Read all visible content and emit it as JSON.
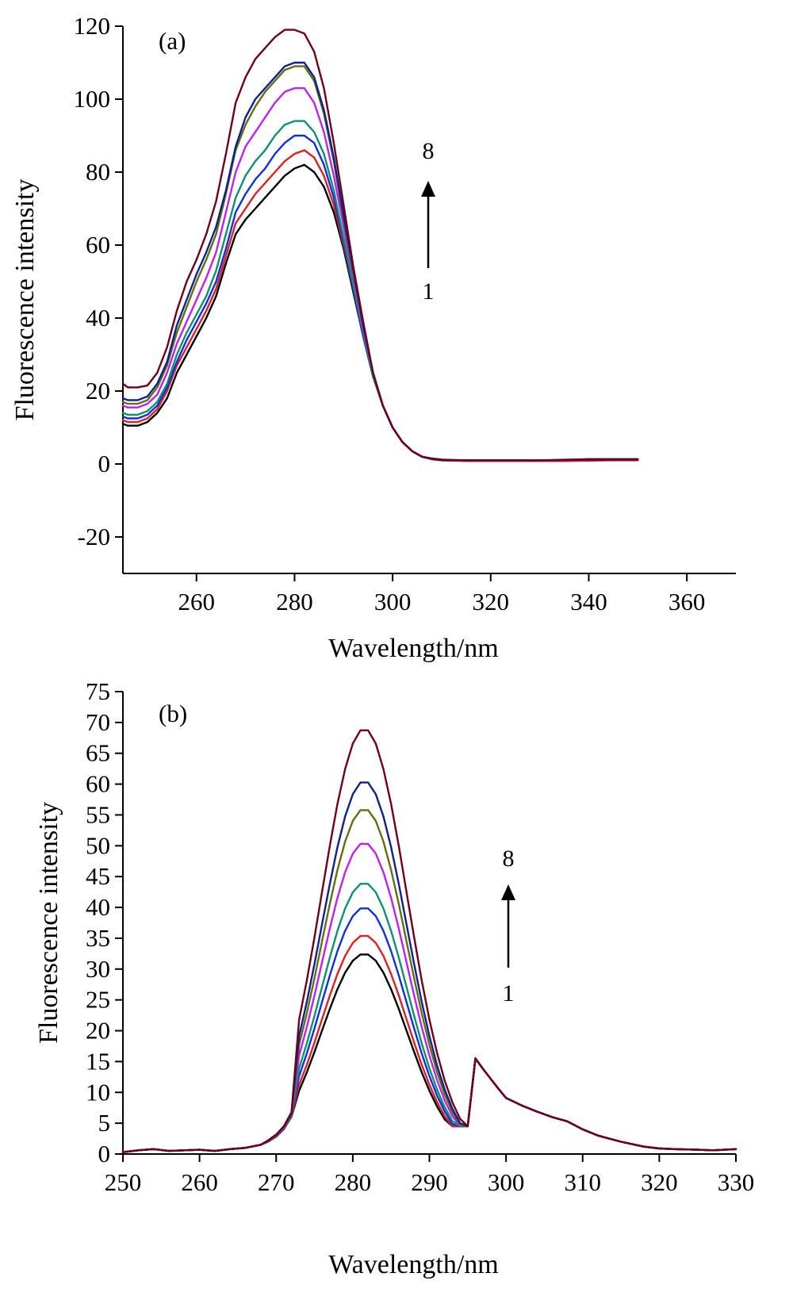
{
  "chart_data": [
    {
      "type": "line",
      "panel_label": "(a)",
      "xlabel": "Wavelength/nm",
      "ylabel": "Fluorescence intensity",
      "xlim": [
        245,
        370
      ],
      "ylim": [
        -30,
        120
      ],
      "xticks": [
        260,
        280,
        300,
        320,
        340,
        360
      ],
      "yticks": [
        -20,
        0,
        20,
        40,
        60,
        80,
        100,
        120
      ],
      "arrow": {
        "top_label": "8",
        "bottom_label": "1"
      },
      "x": [
        245,
        246,
        248,
        250,
        252,
        254,
        256,
        258,
        260,
        262,
        264,
        266,
        268,
        270,
        272,
        274,
        276,
        278,
        280,
        282,
        284,
        286,
        288,
        290,
        292,
        294,
        296,
        298,
        300,
        302,
        304,
        306,
        308,
        310,
        315,
        320,
        325,
        330,
        335,
        340,
        345,
        350
      ],
      "series": [
        {
          "color": "#000000",
          "values": [
            11,
            10.5,
            10.5,
            11.5,
            14,
            18,
            25,
            30,
            35,
            40,
            46,
            55,
            63,
            67,
            70,
            73,
            76,
            79,
            81,
            82,
            80,
            76,
            69,
            59,
            47,
            35,
            24,
            16,
            10,
            6,
            3.5,
            2,
            1.5,
            1.2,
            1,
            1,
            1,
            1,
            1,
            1.2,
            1.2,
            1.2
          ]
        },
        {
          "color": "#e02020",
          "values": [
            12,
            11.5,
            11.5,
            12.5,
            15,
            20,
            27,
            32,
            37,
            42,
            48,
            57,
            66,
            70,
            74,
            77,
            80,
            83,
            85,
            86,
            84,
            79,
            71,
            60,
            48,
            35,
            24,
            16,
            10,
            6,
            3.5,
            2,
            1.3,
            1,
            0.8,
            0.8,
            0.8,
            0.8,
            0.8,
            0.9,
            1,
            1
          ]
        },
        {
          "color": "#1030e0",
          "values": [
            13,
            12.5,
            12.5,
            13.5,
            16,
            21,
            28,
            34,
            39,
            44,
            50,
            59,
            69,
            74,
            78,
            81,
            85,
            88,
            90,
            90,
            88,
            82,
            73,
            61,
            48,
            35,
            24,
            16,
            10,
            6,
            3.5,
            2,
            1.4,
            1.1,
            1,
            1,
            1,
            1,
            1.1,
            1.3,
            1.3,
            1.3
          ]
        },
        {
          "color": "#109070",
          "values": [
            14,
            13.5,
            13.5,
            14.5,
            17,
            22,
            30,
            36,
            41,
            46,
            53,
            63,
            73,
            79,
            83,
            86,
            90,
            93,
            94,
            94,
            91,
            85,
            75,
            62,
            49,
            36,
            24,
            16,
            10,
            6,
            3.5,
            2,
            1.3,
            1.1,
            1,
            1,
            1,
            1,
            1.2,
            1.3,
            1.3,
            1.3
          ]
        },
        {
          "color": "#c020f0",
          "values": [
            16,
            15.5,
            15.5,
            16.5,
            19,
            25,
            33,
            39,
            45,
            51,
            58,
            69,
            80,
            87,
            91,
            95,
            99,
            102,
            103,
            103,
            99,
            91,
            79,
            65,
            51,
            37,
            25,
            16,
            10,
            6,
            3.5,
            2,
            1.3,
            1,
            0.9,
            0.9,
            0.9,
            0.9,
            1,
            1.1,
            1.1,
            1.1
          ]
        },
        {
          "color": "#607010",
          "values": [
            17,
            16.5,
            16.5,
            17.5,
            21,
            27,
            36,
            43,
            50,
            56,
            63,
            74,
            86,
            93,
            98,
            102,
            105,
            108,
            109,
            109,
            105,
            96,
            83,
            67,
            52,
            38,
            25,
            16,
            10,
            6,
            3.5,
            2,
            1.4,
            1.1,
            1,
            1,
            1,
            1,
            1.1,
            1.2,
            1.2,
            1.2
          ]
        },
        {
          "color": "#102090",
          "values": [
            18,
            17.5,
            17.5,
            18.5,
            22,
            28,
            38,
            45,
            52,
            58,
            65,
            75,
            87,
            95,
            100,
            103,
            106,
            109,
            110,
            110,
            106,
            97,
            84,
            68,
            53,
            38,
            25,
            16,
            10,
            6,
            3.5,
            2,
            1.4,
            1.1,
            1,
            1,
            1,
            1,
            1.1,
            1.3,
            1.3,
            1.3
          ]
        },
        {
          "color": "#700018",
          "values": [
            22,
            21,
            21,
            21.5,
            25,
            32,
            42,
            50,
            56,
            63,
            72,
            85,
            99,
            106,
            111,
            114,
            117,
            119,
            119,
            118,
            113,
            103,
            88,
            71,
            54,
            39,
            25,
            16,
            10,
            6,
            3.5,
            2,
            1.4,
            1.1,
            1,
            1,
            1,
            1,
            1.1,
            1.2,
            1.2,
            1.2
          ]
        }
      ]
    },
    {
      "type": "line",
      "panel_label": "(b)",
      "xlabel": "Wavelength/nm",
      "ylabel": "Fluorescence intensity",
      "xlim": [
        250,
        330
      ],
      "ylim": [
        0,
        75
      ],
      "xticks": [
        250,
        260,
        270,
        280,
        290,
        300,
        310,
        320,
        330
      ],
      "yticks": [
        0,
        5,
        10,
        15,
        20,
        25,
        30,
        35,
        40,
        45,
        50,
        55,
        60,
        65,
        70,
        75
      ],
      "arrow": {
        "top_label": "8",
        "bottom_label": "1"
      },
      "x": [
        250,
        252,
        254,
        256,
        258,
        260,
        262,
        264,
        266,
        268,
        269,
        270,
        271,
        272,
        273,
        274,
        275,
        276,
        277,
        278,
        279,
        280,
        281,
        282,
        283,
        284,
        285,
        286,
        287,
        288,
        289,
        290,
        291,
        292,
        293,
        294,
        295,
        296,
        297,
        298,
        299,
        300,
        302,
        304,
        306,
        308,
        310,
        312,
        315,
        318,
        320,
        322,
        325,
        327,
        330
      ],
      "series": [
        {
          "color": "#000000",
          "peak": 32.5
        },
        {
          "color": "#e02020",
          "peak": 35.5
        },
        {
          "color": "#1030e0",
          "peak": 40
        },
        {
          "color": "#109070",
          "peak": 44
        },
        {
          "color": "#c020f0",
          "peak": 50.5
        },
        {
          "color": "#607010",
          "peak": 56
        },
        {
          "color": "#102090",
          "peak": 60.5
        },
        {
          "color": "#700018",
          "peak": 69
        }
      ],
      "shape": [
        0.3,
        0.6,
        0.8,
        0.5,
        0.6,
        0.7,
        0.5,
        0.8,
        1.0,
        1.5,
        2.0,
        2.8,
        4.0,
        6.0
      ],
      "tail": [
        15.5,
        13.8,
        12.2,
        10.6,
        9.1,
        7.9,
        6.9,
        6.0,
        5.3,
        4.0,
        3.0,
        2.0,
        1.2,
        0.9,
        0.8,
        0.7,
        0.6,
        0.8,
        0.6,
        0.5,
        0.7,
        0.6
      ]
    }
  ]
}
